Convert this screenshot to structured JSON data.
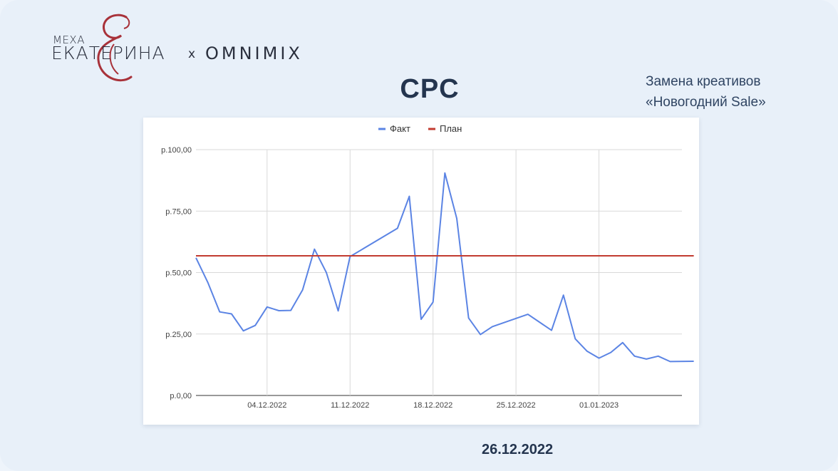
{
  "logo": {
    "line1": "МЕХА",
    "line2": "ЕКАТЕРИНА",
    "separator": "x",
    "partner": "OMNIMIX"
  },
  "title": "CPC",
  "annotation": {
    "line1": "Замена креативов",
    "line2": "«Новогодний Sale»"
  },
  "marker_date": "26.12.2022",
  "colors": {
    "fact": "#5b84e4",
    "plan": "#c23b30",
    "marker": "#9a4df0",
    "marker_end": "#4f6ee8"
  },
  "chart_data": {
    "type": "line",
    "title": "",
    "xlabel": "",
    "ylabel": "",
    "legend_position": "top",
    "grid": true,
    "ylim": [
      0,
      100
    ],
    "yticks": [
      "р.0,00",
      "р.25,00",
      "р.50,00",
      "р.75,00",
      "р.100,00"
    ],
    "ytick_values": [
      0,
      25,
      50,
      75,
      100
    ],
    "x_start": "2022-11-28",
    "x_end": "2023-01-08",
    "xticks": [
      {
        "date": "2022-12-04",
        "label": "04.12.2022"
      },
      {
        "date": "2022-12-11",
        "label": "11.12.2022"
      },
      {
        "date": "2022-12-18",
        "label": "18.12.2022"
      },
      {
        "date": "2022-12-25",
        "label": "25.12.2022"
      },
      {
        "date": "2023-01-01",
        "label": "01.01.2023"
      }
    ],
    "marker_x": "2022-12-26",
    "series": [
      {
        "name": "Факт",
        "points": [
          [
            "2022-11-28",
            56
          ],
          [
            "2022-11-29",
            46
          ],
          [
            "2022-11-30",
            34
          ],
          [
            "2022-12-01",
            33.2
          ],
          [
            "2022-12-02",
            26.3
          ],
          [
            "2022-12-03",
            28.5
          ],
          [
            "2022-12-04",
            36
          ],
          [
            "2022-12-05",
            34.5
          ],
          [
            "2022-12-06",
            34.6
          ],
          [
            "2022-12-07",
            43
          ],
          [
            "2022-12-08",
            59.5
          ],
          [
            "2022-12-09",
            50
          ],
          [
            "2022-12-10",
            34.4
          ],
          [
            "2022-12-11",
            56.5
          ],
          [
            "2022-12-15",
            68
          ],
          [
            "2022-12-16",
            81
          ],
          [
            "2022-12-17",
            31
          ],
          [
            "2022-12-18",
            38
          ],
          [
            "2022-12-19",
            90.5
          ],
          [
            "2022-12-20",
            72
          ],
          [
            "2022-12-21",
            31.5
          ],
          [
            "2022-12-22",
            24.8
          ],
          [
            "2022-12-23",
            28
          ],
          [
            "2022-12-26",
            33
          ],
          [
            "2022-12-28",
            26.5
          ],
          [
            "2022-12-29",
            40.8
          ],
          [
            "2022-12-30",
            23
          ],
          [
            "2022-12-31",
            18
          ],
          [
            "2023-01-01",
            15.2
          ],
          [
            "2023-01-02",
            17.5
          ],
          [
            "2023-01-03",
            21.5
          ],
          [
            "2023-01-04",
            16
          ],
          [
            "2023-01-05",
            14.8
          ],
          [
            "2023-01-06",
            16
          ],
          [
            "2023-01-07",
            13.8
          ],
          [
            "2023-01-09",
            13.9
          ]
        ]
      },
      {
        "name": "План",
        "points": [
          [
            "2022-11-28",
            56.8
          ],
          [
            "2023-01-09",
            56.8
          ]
        ]
      }
    ]
  }
}
